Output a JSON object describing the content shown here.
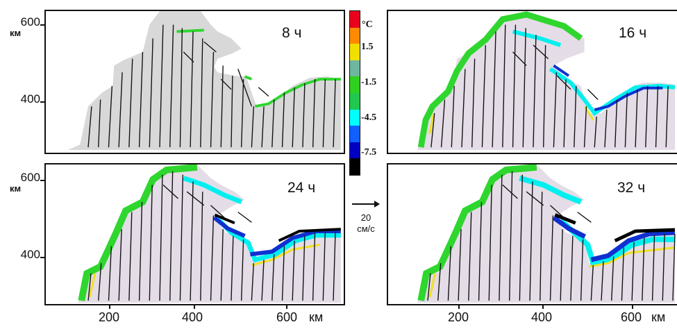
{
  "panels": [
    {
      "id": "p1",
      "time_label": "8 ч"
    },
    {
      "id": "p2",
      "time_label": "16 ч"
    },
    {
      "id": "p3",
      "time_label": "24 ч"
    },
    {
      "id": "p4",
      "time_label": "32 ч"
    }
  ],
  "y_axis": {
    "ticks": [
      "600",
      "400"
    ],
    "unit": "км"
  },
  "x_axis": {
    "ticks": [
      "200",
      "400",
      "600"
    ],
    "unit": "км"
  },
  "colorbar": {
    "unit": "°C",
    "labels": [
      "1.5",
      "-1.5",
      "-4.5",
      "-7.5"
    ],
    "colors": [
      "#e8001c",
      "#ff8a00",
      "#f0e000",
      "#6fb6a0",
      "#30d020",
      "#20c850",
      "#00ffff",
      "#1060ff",
      "#0000c0",
      "#000000"
    ]
  },
  "vector_scale": {
    "value": "20",
    "unit": "см/с"
  },
  "colors": {
    "land": "#d8d8d8",
    "green": "#2ed62e",
    "cyan": "#00f0f0",
    "blue": "#1030d0",
    "magenta": "#cc66cc",
    "yellow": "#f0e020"
  }
}
